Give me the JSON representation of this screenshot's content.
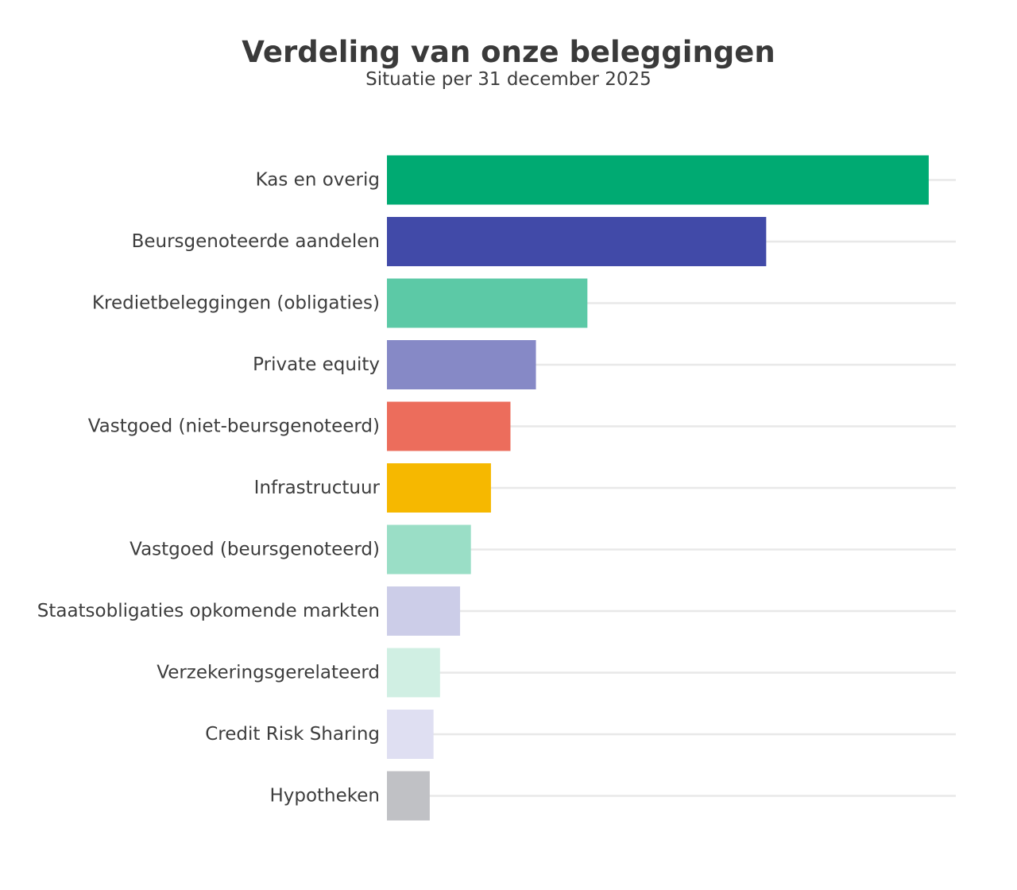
{
  "chart_data": {
    "type": "bar",
    "orientation": "horizontal",
    "title": "Verdeling van onze beleggingen",
    "subtitle": "Situatie per 31 december 2025",
    "xlabel": "",
    "ylabel": "",
    "grid": true,
    "legend": "none",
    "xlim": [
      0,
      105
    ],
    "categories": [
      "Kas en overig",
      "Beursgenoteerde aandelen",
      "Kredietbeleggingen (obligaties)",
      "Private equity",
      "Vastgoed (niet-beursgenoteerd)",
      "Infrastructuur",
      "Vastgoed (beursgenoteerd)",
      "Staatsobligaties opkomende markten",
      "Verzekeringsgerelateerd",
      "Credit Risk Sharing",
      "Hypotheken"
    ],
    "values": [
      100,
      70,
      37,
      27.5,
      22.8,
      19.2,
      15.5,
      13.5,
      9.8,
      8.6,
      7.9
    ],
    "colors": [
      "#00aa72",
      "#414aa8",
      "#5cc9a6",
      "#8689c6",
      "#ec6d5c",
      "#f6b800",
      "#9adec6",
      "#cccde8",
      "#d0efe3",
      "#dfdff2",
      "#c0c1c5"
    ],
    "gridline_color": "#e8e8e8"
  }
}
